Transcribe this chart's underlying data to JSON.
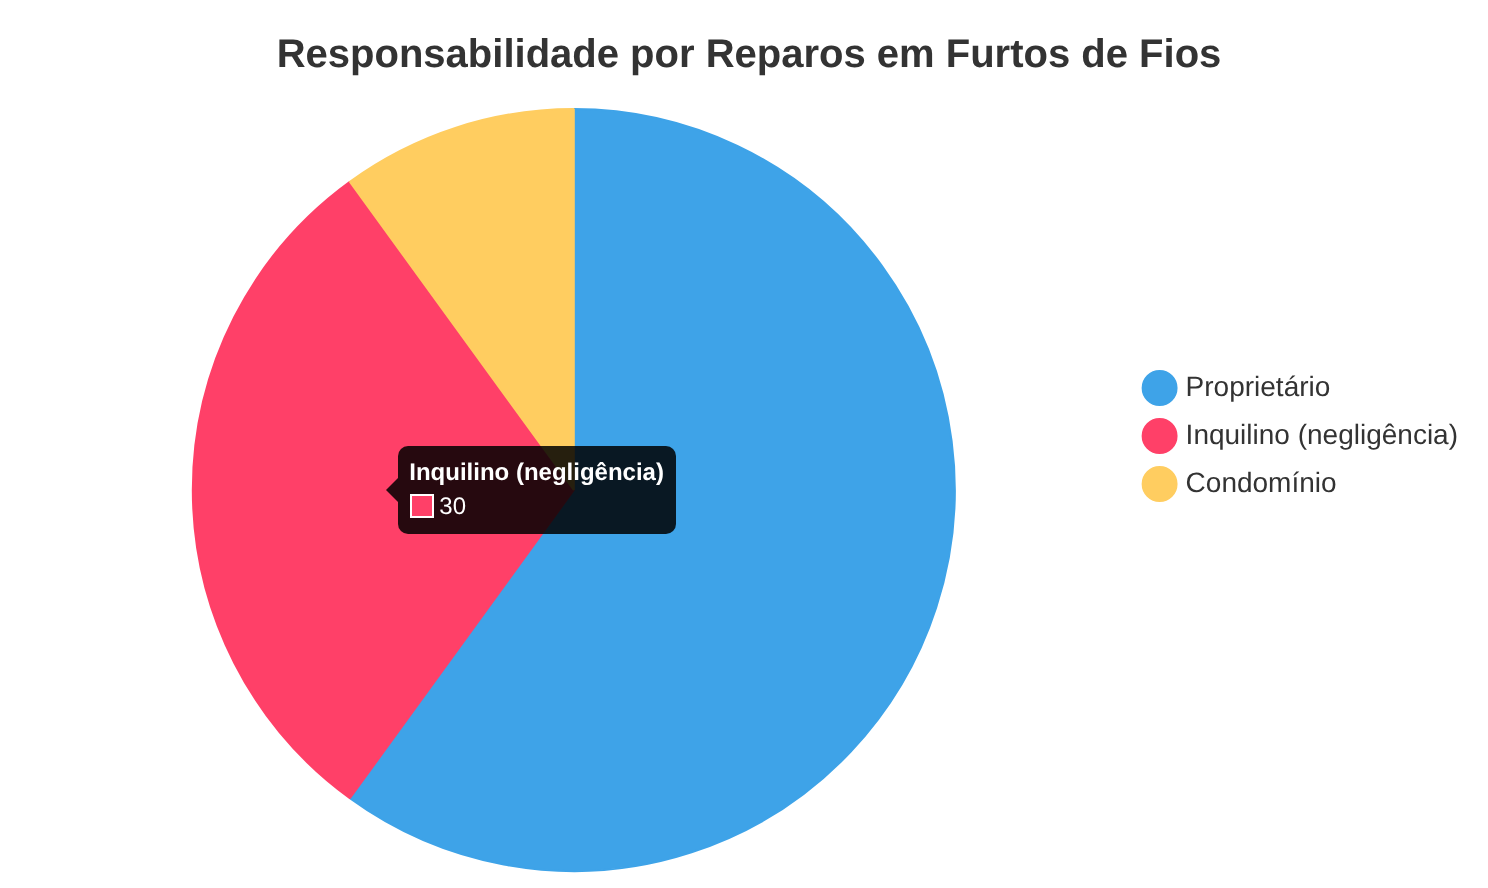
{
  "chart_data": {
    "type": "pie",
    "title": "Responsabilidade por Reparos em Furtos de Fios",
    "categories": [
      "Proprietário",
      "Inquilino (negligência)",
      "Condomínio"
    ],
    "values": [
      60,
      30,
      10
    ],
    "colors": [
      "#3ea3e8",
      "#ff4068",
      "#ffcd60"
    ],
    "value_labels": [
      null,
      "30",
      null
    ],
    "legend": "right"
  }
}
